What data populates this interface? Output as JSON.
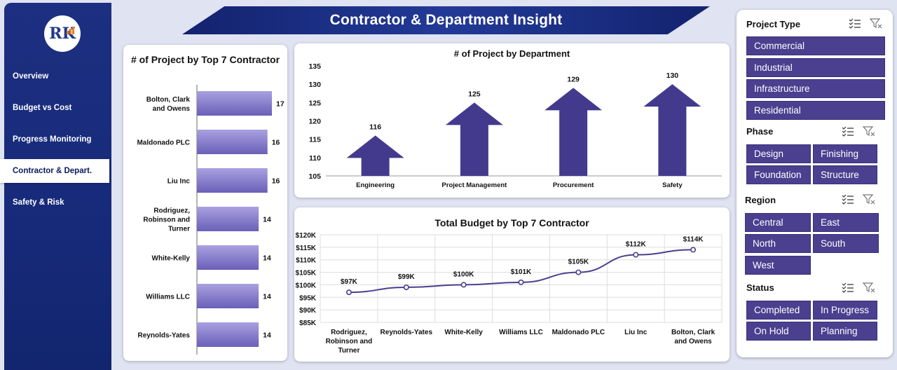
{
  "sidebar": {
    "logo_text": "RK",
    "items": [
      {
        "label": "Overview"
      },
      {
        "label": "Budget vs Cost"
      },
      {
        "label": "Progress Monitoring"
      },
      {
        "label": "Contractor & Depart.",
        "active": true
      },
      {
        "label": "Safety & Risk"
      }
    ]
  },
  "header": {
    "title": "Contractor & Department Insight"
  },
  "filters": {
    "project_type": {
      "label": "Project Type",
      "options": [
        "Commercial",
        "Industrial",
        "Infrastructure",
        "Residential"
      ]
    },
    "phase": {
      "label": "Phase",
      "options": [
        "Design",
        "Finishing",
        "Foundation",
        "Structure"
      ]
    },
    "region": {
      "label": "Region",
      "options": [
        "Central",
        "East",
        "North",
        "South",
        "West"
      ]
    },
    "status": {
      "label": "Status",
      "options": [
        "Completed",
        "In Progress",
        "On Hold",
        "Planning"
      ]
    }
  },
  "colors": {
    "accent": "#4b3f8f",
    "sidebar": "#1d2f80",
    "bar_gradient_top": "#a9a1e0",
    "bar_gradient_bottom": "#6a5fb8",
    "arrow": "#433a8e",
    "line": "#4b3f8f"
  },
  "chart_data": [
    {
      "type": "bar",
      "orientation": "horizontal",
      "title": "# of Project by Top 7 Contractor",
      "categories": [
        "Bolton, Clark and Owens",
        "Maldonado PLC",
        "Liu Inc",
        "Rodriguez, Robinson and Turner",
        "White-Kelly",
        "Williams LLC",
        "Reynolds-Yates"
      ],
      "values": [
        17,
        16,
        16,
        14,
        14,
        14,
        14
      ],
      "xlim": [
        0,
        17
      ]
    },
    {
      "type": "bar",
      "style": "arrow",
      "title": "# of Project by Department",
      "categories": [
        "Engineering",
        "Project Management",
        "Procurement",
        "Safety"
      ],
      "values": [
        116,
        125,
        129,
        130
      ],
      "ylim": [
        105,
        135
      ],
      "yticks": [
        105,
        110,
        115,
        120,
        125,
        130,
        135
      ]
    },
    {
      "type": "line",
      "title": "Total Budget by  Top 7 Contractor",
      "categories": [
        "Rodriguez, Robinson and Turner",
        "Reynolds-Yates",
        "White-Kelly",
        "Williams LLC",
        "Maldonado PLC",
        "Liu Inc",
        "Bolton, Clark and Owens"
      ],
      "values": [
        97,
        99,
        100,
        101,
        105,
        112,
        114
      ],
      "labels": [
        "$97K",
        "$99K",
        "$100K",
        "$101K",
        "$105K",
        "$112K",
        "$114K"
      ],
      "ylim": [
        85,
        120
      ],
      "yticks": [
        "$85K",
        "$90K",
        "$95K",
        "$100K",
        "$105K",
        "$110K",
        "$115K",
        "$120K"
      ],
      "grid": true
    }
  ]
}
